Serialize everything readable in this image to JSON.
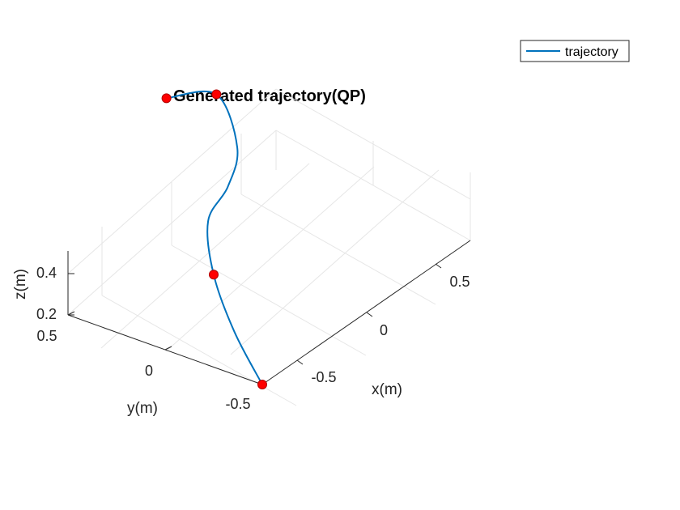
{
  "chart_data": {
    "type": "line",
    "title": "Generated trajectory(QP)",
    "xlabel": "x(m)",
    "ylabel": "y(m)",
    "zlabel": "z(m)",
    "x_ticks": [
      "-0.5",
      "0",
      "0.5"
    ],
    "y_ticks": [
      "-0.5",
      "0",
      "0.5"
    ],
    "z_ticks": [
      "0.2",
      "0.4"
    ],
    "grid": true,
    "legend_position": "top-right",
    "series": [
      {
        "name": "trajectory",
        "color": "#0072BD",
        "style": "line",
        "points": [
          {
            "x": -0.5,
            "y": -0.5,
            "z": 0.2
          },
          {
            "x": -0.35,
            "y": -0.25,
            "z": 0.3
          },
          {
            "x": -0.22,
            "y": -0.05,
            "z": 0.45
          },
          {
            "x": -0.05,
            "y": 0.1,
            "z": 0.58
          },
          {
            "x": 0.12,
            "y": 0.12,
            "z": 0.66
          },
          {
            "x": 0.3,
            "y": 0.2,
            "z": 0.74
          },
          {
            "x": 0.5,
            "y": 0.45,
            "z": 0.82
          },
          {
            "x": 0.35,
            "y": 0.6,
            "z": 0.82
          }
        ]
      },
      {
        "name": "waypoints",
        "color": "#FF0000",
        "style": "marker",
        "points": [
          {
            "x": -0.5,
            "y": -0.5,
            "z": 0.2
          },
          {
            "x": -0.22,
            "y": -0.05,
            "z": 0.45
          },
          {
            "x": 0.5,
            "y": 0.45,
            "z": 0.82
          },
          {
            "x": 0.35,
            "y": 0.6,
            "z": 0.82
          }
        ]
      }
    ]
  },
  "legend": {
    "label": "trajectory",
    "line_color": "#0072BD"
  }
}
